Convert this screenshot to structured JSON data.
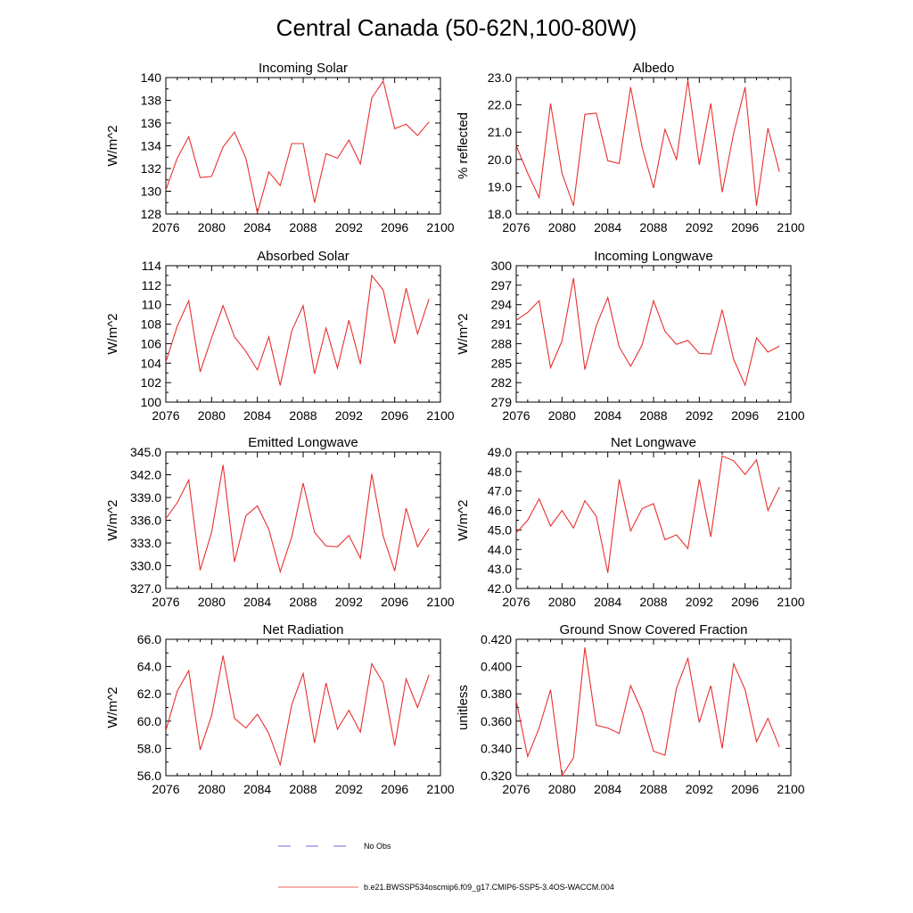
{
  "figure": {
    "title": "Central Canada (50-62N,100-80W)"
  },
  "legend": {
    "entries": [
      {
        "label": "No Obs",
        "color": "#3b3bd6",
        "style": "dashed"
      },
      {
        "label": "b.e21.BWSSP534oscmip6.f09_g17.CMIP6-SSP5-3.4OS-WACCM.004",
        "color": "#e8302e",
        "style": "solid"
      }
    ]
  },
  "chart_data": [
    {
      "type": "line",
      "title": "Incoming Solar",
      "ylabel": "W/m^2",
      "xlim": [
        2076,
        2100
      ],
      "ylim": [
        128,
        140
      ],
      "xticks": [
        "2076",
        "2080",
        "2084",
        "2088",
        "2092",
        "2096",
        "2100"
      ],
      "yticks": [
        "128",
        "130",
        "132",
        "134",
        "136",
        "138",
        "140"
      ],
      "series": [
        {
          "name": "b.e21.BWSSP534oscmip6.f09_g17.CMIP6-SSP5-3.4OS-WACCM.004",
          "color": "#e8302e",
          "x": [
            2076,
            2077,
            2078,
            2079,
            2080,
            2081,
            2082,
            2083,
            2084,
            2085,
            2086,
            2087,
            2088,
            2089,
            2090,
            2091,
            2092,
            2093,
            2094,
            2095,
            2096,
            2097,
            2098,
            2099
          ],
          "values": [
            130.1,
            132.9,
            134.8,
            131.2,
            131.3,
            133.9,
            135.2,
            132.9,
            128.1,
            131.7,
            130.5,
            134.2,
            134.2,
            129.0,
            133.3,
            132.9,
            134.5,
            132.4,
            138.2,
            139.7,
            135.5,
            135.9,
            134.9,
            136.1
          ]
        }
      ]
    },
    {
      "type": "line",
      "title": "Albedo",
      "ylabel": "% reflected",
      "xlim": [
        2076,
        2100
      ],
      "ylim": [
        18.0,
        23.0
      ],
      "xticks": [
        "2076",
        "2080",
        "2084",
        "2088",
        "2092",
        "2096",
        "2100"
      ],
      "yticks": [
        "18.0",
        "19.0",
        "20.0",
        "21.0",
        "22.0",
        "23.0"
      ],
      "series": [
        {
          "name": "b.e21.BWSSP534oscmip6.f09_g17.CMIP6-SSP5-3.4OS-WACCM.004",
          "color": "#e8302e",
          "x": [
            2076,
            2077,
            2078,
            2079,
            2080,
            2081,
            2082,
            2083,
            2084,
            2085,
            2086,
            2087,
            2088,
            2089,
            2090,
            2091,
            2092,
            2093,
            2094,
            2095,
            2096,
            2097,
            2098,
            2099
          ],
          "values": [
            20.5,
            19.5,
            18.6,
            22.05,
            19.5,
            18.3,
            21.65,
            21.7,
            19.95,
            19.85,
            22.65,
            20.45,
            18.95,
            21.1,
            20.0,
            22.9,
            19.8,
            22.05,
            18.8,
            20.95,
            22.65,
            18.3,
            21.15,
            19.55
          ]
        }
      ]
    },
    {
      "type": "line",
      "title": "Absorbed Solar",
      "ylabel": "W/m^2",
      "xlim": [
        2076,
        2100
      ],
      "ylim": [
        100,
        114
      ],
      "xticks": [
        "2076",
        "2080",
        "2084",
        "2088",
        "2092",
        "2096",
        "2100"
      ],
      "yticks": [
        "100",
        "102",
        "104",
        "106",
        "108",
        "110",
        "112",
        "114"
      ],
      "series": [
        {
          "name": "b.e21.BWSSP534oscmip6.f09_g17.CMIP6-SSP5-3.4OS-WACCM.004",
          "color": "#e8302e",
          "x": [
            2076,
            2077,
            2078,
            2079,
            2080,
            2081,
            2082,
            2083,
            2084,
            2085,
            2086,
            2087,
            2088,
            2089,
            2090,
            2091,
            2092,
            2093,
            2094,
            2095,
            2096,
            2097,
            2098,
            2099
          ],
          "values": [
            104.1,
            107.8,
            110.4,
            103.1,
            106.6,
            109.9,
            106.7,
            105.2,
            103.3,
            106.7,
            101.7,
            107.3,
            109.9,
            102.9,
            107.6,
            103.5,
            108.4,
            103.9,
            113.0,
            111.5,
            106.0,
            111.7,
            107.0,
            110.6
          ]
        }
      ]
    },
    {
      "type": "line",
      "title": "Incoming Longwave",
      "ylabel": "W/m^2",
      "xlim": [
        2076,
        2100
      ],
      "ylim": [
        279,
        300
      ],
      "xticks": [
        "2076",
        "2080",
        "2084",
        "2088",
        "2092",
        "2096",
        "2100"
      ],
      "yticks": [
        "279",
        "282",
        "285",
        "288",
        "291",
        "294",
        "297",
        "300"
      ],
      "series": [
        {
          "name": "b.e21.BWSSP534oscmip6.f09_g17.CMIP6-SSP5-3.4OS-WACCM.004",
          "color": "#e8302e",
          "x": [
            2076,
            2077,
            2078,
            2079,
            2080,
            2081,
            2082,
            2083,
            2084,
            2085,
            2086,
            2087,
            2088,
            2089,
            2090,
            2091,
            2092,
            2093,
            2094,
            2095,
            2096,
            2097,
            2098,
            2099
          ],
          "values": [
            291.6,
            292.8,
            294.6,
            284.3,
            288.4,
            298.1,
            284.0,
            290.8,
            295.1,
            287.5,
            284.5,
            287.8,
            294.6,
            289.9,
            287.9,
            288.5,
            286.5,
            286.4,
            293.2,
            285.6,
            281.6,
            288.9,
            286.7,
            287.6
          ]
        }
      ]
    },
    {
      "type": "line",
      "title": "Emitted Longwave",
      "ylabel": "W/m^2",
      "xlim": [
        2076,
        2100
      ],
      "ylim": [
        327.0,
        345.0
      ],
      "xticks": [
        "2076",
        "2080",
        "2084",
        "2088",
        "2092",
        "2096",
        "2100"
      ],
      "yticks": [
        "327.0",
        "330.0",
        "333.0",
        "336.0",
        "339.0",
        "342.0",
        "345.0"
      ],
      "series": [
        {
          "name": "b.e21.BWSSP534oscmip6.f09_g17.CMIP6-SSP5-3.4OS-WACCM.004",
          "color": "#e8302e",
          "x": [
            2076,
            2077,
            2078,
            2079,
            2080,
            2081,
            2082,
            2083,
            2084,
            2085,
            2086,
            2087,
            2088,
            2089,
            2090,
            2091,
            2092,
            2093,
            2094,
            2095,
            2096,
            2097,
            2098,
            2099
          ],
          "values": [
            336.2,
            338.3,
            341.3,
            329.4,
            334.4,
            343.3,
            330.5,
            336.6,
            337.9,
            334.8,
            329.2,
            333.8,
            340.9,
            334.4,
            332.6,
            332.5,
            334.0,
            331.0,
            342.1,
            333.9,
            329.3,
            337.6,
            332.5,
            334.9
          ]
        }
      ]
    },
    {
      "type": "line",
      "title": "Net Longwave",
      "ylabel": "W/m^2",
      "xlim": [
        2076,
        2100
      ],
      "ylim": [
        42.0,
        49.0
      ],
      "xticks": [
        "2076",
        "2080",
        "2084",
        "2088",
        "2092",
        "2096",
        "2100"
      ],
      "yticks": [
        "42.0",
        "43.0",
        "44.0",
        "45.0",
        "46.0",
        "47.0",
        "48.0",
        "49.0"
      ],
      "series": [
        {
          "name": "b.e21.BWSSP534oscmip6.f09_g17.CMIP6-SSP5-3.4OS-WACCM.004",
          "color": "#e8302e",
          "x": [
            2076,
            2077,
            2078,
            2079,
            2080,
            2081,
            2082,
            2083,
            2084,
            2085,
            2086,
            2087,
            2088,
            2089,
            2090,
            2091,
            2092,
            2093,
            2094,
            2095,
            2096,
            2097,
            2098,
            2099
          ],
          "values": [
            44.85,
            45.5,
            46.6,
            45.2,
            46.0,
            45.1,
            46.5,
            45.7,
            42.8,
            47.6,
            44.95,
            46.1,
            46.35,
            44.5,
            44.75,
            44.05,
            47.6,
            44.65,
            48.8,
            48.55,
            47.85,
            48.6,
            46.0,
            47.2
          ]
        }
      ]
    },
    {
      "type": "line",
      "title": "Net Radiation",
      "ylabel": "W/m^2",
      "xlim": [
        2076,
        2100
      ],
      "ylim": [
        56.0,
        66.0
      ],
      "xticks": [
        "2076",
        "2080",
        "2084",
        "2088",
        "2092",
        "2096",
        "2100"
      ],
      "yticks": [
        "56.0",
        "58.0",
        "60.0",
        "62.0",
        "64.0",
        "66.0"
      ],
      "series": [
        {
          "name": "b.e21.BWSSP534oscmip6.f09_g17.CMIP6-SSP5-3.4OS-WACCM.004",
          "color": "#e8302e",
          "x": [
            2076,
            2077,
            2078,
            2079,
            2080,
            2081,
            2082,
            2083,
            2084,
            2085,
            2086,
            2087,
            2088,
            2089,
            2090,
            2091,
            2092,
            2093,
            2094,
            2095,
            2096,
            2097,
            2098,
            2099
          ],
          "values": [
            59.3,
            62.2,
            63.7,
            57.9,
            60.4,
            64.8,
            60.2,
            59.5,
            60.5,
            59.1,
            56.8,
            61.2,
            63.5,
            58.4,
            62.8,
            59.4,
            60.8,
            59.2,
            64.2,
            62.8,
            58.2,
            63.1,
            61.0,
            63.4
          ]
        }
      ]
    },
    {
      "type": "line",
      "title": "Ground Snow Covered Fraction",
      "ylabel": "unitless",
      "xlim": [
        2076,
        2100
      ],
      "ylim": [
        0.32,
        0.42
      ],
      "xticks": [
        "2076",
        "2080",
        "2084",
        "2088",
        "2092",
        "2096",
        "2100"
      ],
      "yticks": [
        "0.320",
        "0.340",
        "0.360",
        "0.380",
        "0.400",
        "0.420"
      ],
      "series": [
        {
          "name": "b.e21.BWSSP534oscmip6.f09_g17.CMIP6-SSP5-3.4OS-WACCM.004",
          "color": "#e8302e",
          "x": [
            2076,
            2077,
            2078,
            2079,
            2080,
            2081,
            2082,
            2083,
            2084,
            2085,
            2086,
            2087,
            2088,
            2089,
            2090,
            2091,
            2092,
            2093,
            2094,
            2095,
            2096,
            2097,
            2098,
            2099
          ],
          "values": [
            0.375,
            0.334,
            0.355,
            0.383,
            0.32,
            0.333,
            0.414,
            0.357,
            0.355,
            0.351,
            0.386,
            0.367,
            0.338,
            0.335,
            0.384,
            0.406,
            0.359,
            0.386,
            0.34,
            0.402,
            0.383,
            0.345,
            0.362,
            0.341
          ]
        }
      ]
    }
  ]
}
